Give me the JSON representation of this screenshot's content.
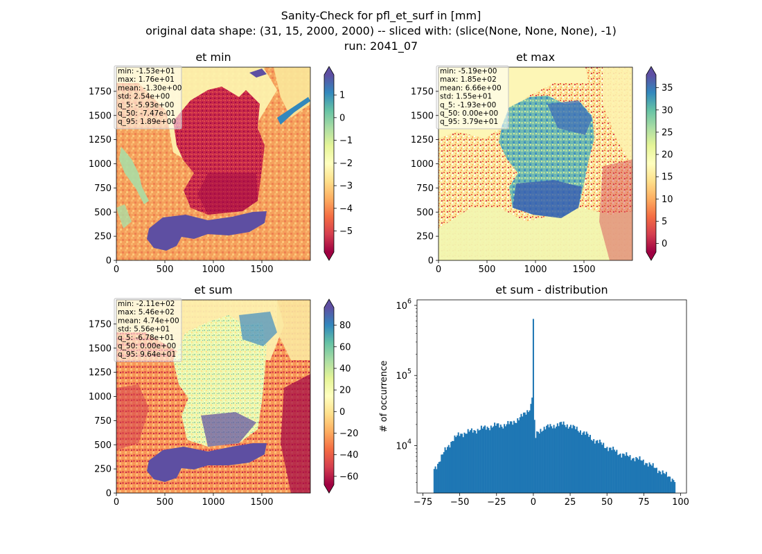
{
  "figure": {
    "title_lines": [
      "Sanity-Check for pfl_et_surf in [mm]",
      "original data shape: (31, 15, 2000, 2000) -- sliced with: (slice(None, None, None), -1)",
      "run: 2041_07"
    ]
  },
  "chart_data": [
    {
      "type": "heatmap",
      "title": "et min",
      "xlim": [
        0,
        2000
      ],
      "ylim": [
        0,
        2000
      ],
      "xticks": [
        0,
        500,
        1000,
        1500
      ],
      "yticks": [
        0,
        250,
        500,
        750,
        1000,
        1250,
        1500,
        1750
      ],
      "colormap": "Spectral",
      "colorbar": {
        "range": [
          -5.93,
          1.89
        ],
        "ticks": [
          1,
          0,
          -1,
          -2,
          -3,
          -4,
          -5
        ],
        "tick_labels": [
          "1",
          "0",
          "−1",
          "−2",
          "−3",
          "−4",
          "−5"
        ],
        "extend": "both"
      },
      "stats": [
        "min: -1.53e+01",
        "max: 1.76e+01",
        "mean: -1.30e+00",
        "std: 2.54e+00",
        "q_5: -5.93e+00",
        "q_50: -7.47e-01",
        "q_95: 1.89e+00"
      ]
    },
    {
      "type": "heatmap",
      "title": "et max",
      "xlim": [
        0,
        2000
      ],
      "ylim": [
        0,
        2000
      ],
      "xticks": [
        0,
        500,
        1000,
        1500
      ],
      "yticks": [
        0,
        250,
        500,
        750,
        1000,
        1250,
        1500,
        1750
      ],
      "colormap": "Spectral",
      "colorbar": {
        "range": [
          -1.93,
          37.9
        ],
        "ticks": [
          35,
          30,
          25,
          20,
          15,
          10,
          5,
          0
        ],
        "tick_labels": [
          "35",
          "30",
          "25",
          "20",
          "15",
          "10",
          "5",
          "0"
        ],
        "extend": "both"
      },
      "stats": [
        "min: -5.19e+00",
        "max: 1.85e+02",
        "mean: 6.66e+00",
        "std: 1.55e+01",
        "q_5: -1.93e+00",
        "q_50: 0.00e+00",
        "q_95: 3.79e+01"
      ]
    },
    {
      "type": "heatmap",
      "title": "et sum",
      "xlim": [
        0,
        2000
      ],
      "ylim": [
        0,
        2000
      ],
      "xticks": [
        0,
        500,
        1000,
        1500
      ],
      "yticks": [
        0,
        250,
        500,
        750,
        1000,
        1250,
        1500,
        1750
      ],
      "colormap": "Spectral",
      "colorbar": {
        "range": [
          -67.8,
          96.4
        ],
        "ticks": [
          80,
          60,
          40,
          20,
          0,
          -20,
          -40,
          -60
        ],
        "tick_labels": [
          "80",
          "60",
          "40",
          "20",
          "0",
          "−20",
          "−40",
          "−60"
        ],
        "extend": "both"
      },
      "stats": [
        "min: -2.11e+02",
        "max: 5.46e+02",
        "mean: 4.74e+00",
        "std: 5.56e+01",
        "q_5: -6.78e+01",
        "q_50: 0.00e+00",
        "q_95: 9.64e+01"
      ]
    },
    {
      "type": "bar",
      "title": "et sum - distribution",
      "ylabel": "# of occurrence",
      "xlabel": "",
      "yscale": "log",
      "xlim": [
        -79,
        104
      ],
      "ylim": [
        2100,
        1200000
      ],
      "xticks": [
        -75,
        -50,
        -25,
        0,
        25,
        50,
        75,
        100
      ],
      "xtick_labels": [
        "−75",
        "−50",
        "−25",
        "0",
        "25",
        "50",
        "75",
        "100"
      ],
      "yticks": [
        10000,
        100000,
        1000000
      ],
      "ytick_labels": [
        [
          "10",
          "4"
        ],
        [
          "10",
          "5"
        ],
        [
          "10",
          "6"
        ]
      ],
      "color": "#1f77b4",
      "bins": {
        "start": -67.8,
        "end": 96.4,
        "count": 200
      },
      "profile": {
        "x": [
          -67.8,
          -65,
          -60,
          -55,
          -50,
          -45,
          -40,
          -35,
          -30,
          -25,
          -20,
          -15,
          -10,
          -7,
          -5,
          -3,
          -2,
          -1,
          -0.5,
          0,
          0.5,
          1,
          2,
          5,
          10,
          15,
          20,
          25,
          30,
          35,
          40,
          45,
          50,
          55,
          60,
          65,
          70,
          75,
          80,
          85,
          90,
          96.4
        ],
        "y": [
          4500,
          5500,
          8500,
          12000,
          14500,
          15500,
          16500,
          17500,
          18500,
          19500,
          19500,
          21000,
          24000,
          27000,
          30000,
          33000,
          36000,
          42000,
          100000,
          820000,
          40000,
          11500,
          14500,
          17000,
          18500,
          19500,
          20500,
          19000,
          17000,
          15000,
          12500,
          11000,
          9500,
          8500,
          7500,
          7000,
          6500,
          6000,
          5200,
          4500,
          3800,
          3200
        ]
      }
    }
  ]
}
